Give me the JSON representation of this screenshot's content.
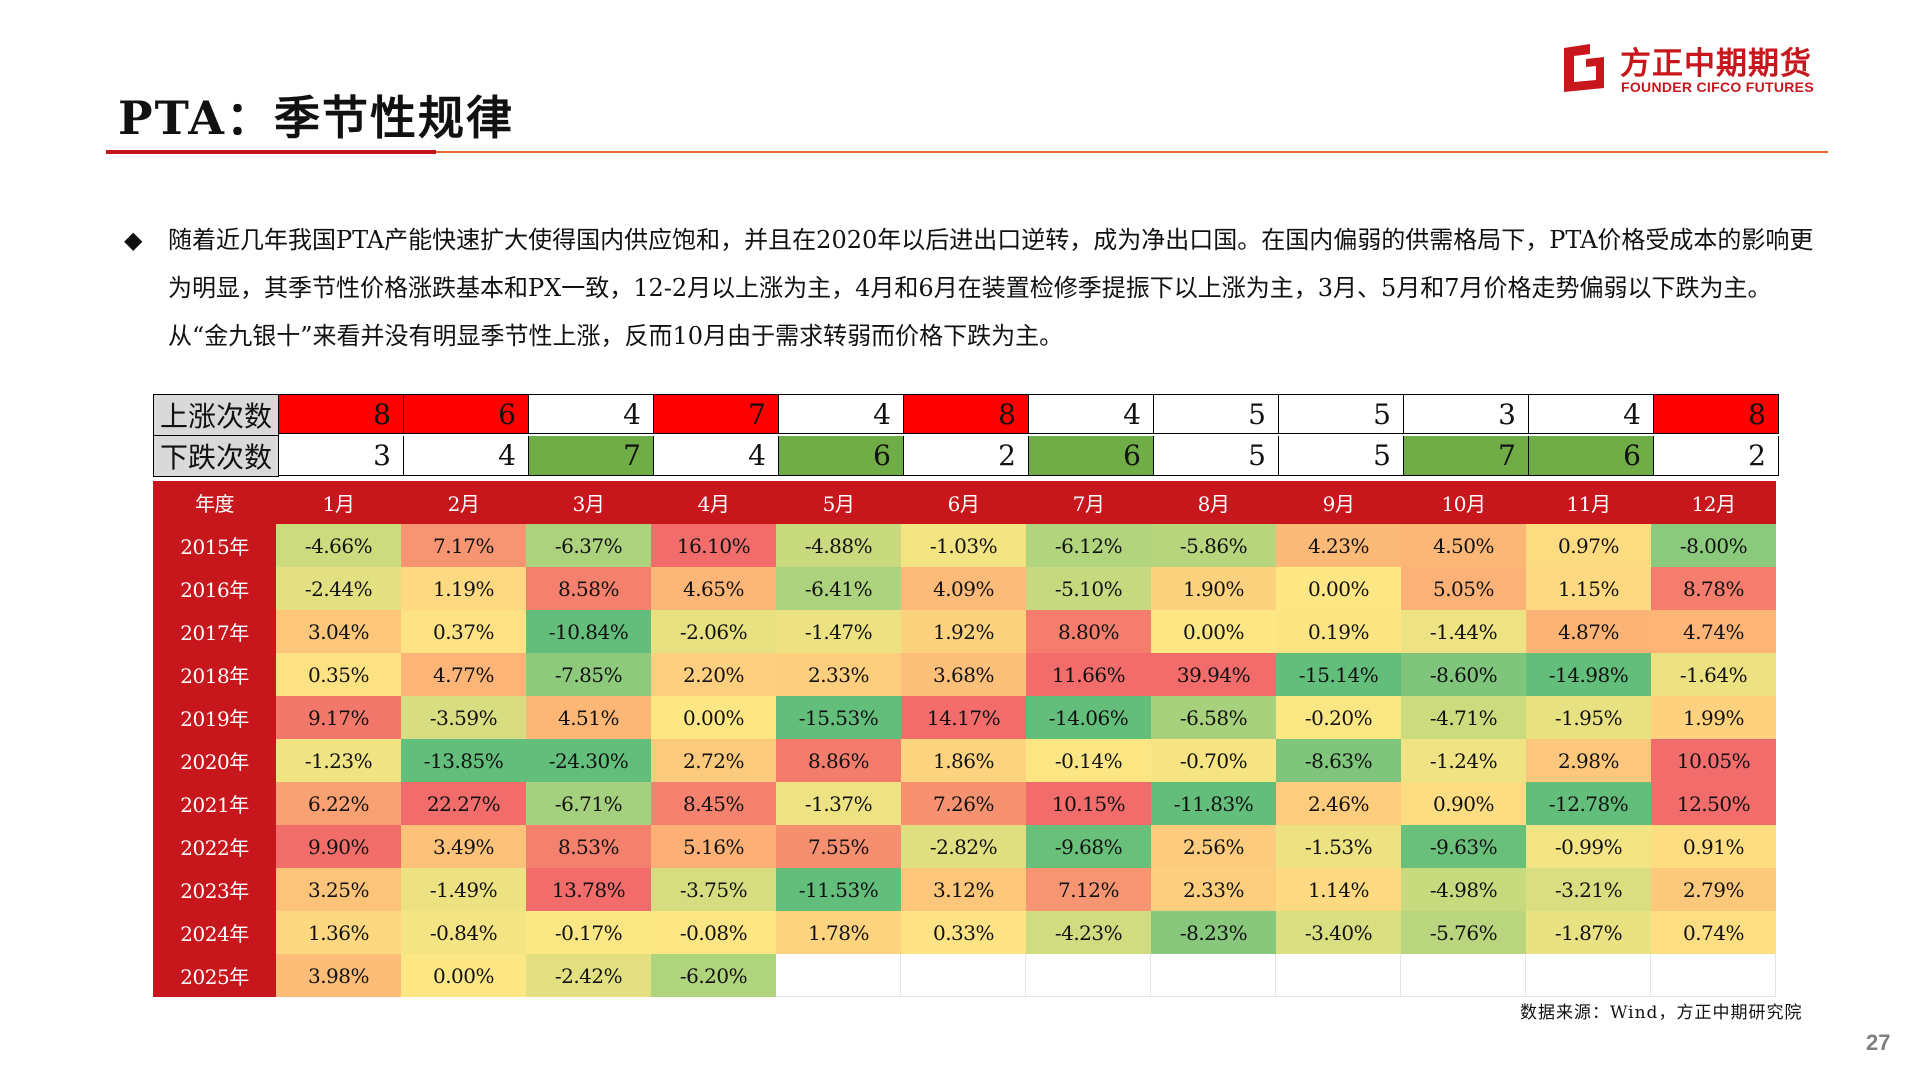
{
  "header": {
    "title": "PTA：季节性规律"
  },
  "logo": {
    "cn": "方正中期期货",
    "en": "FOUNDER CIFCO FUTURES"
  },
  "bullet_symbol": "◆",
  "paragraph": "随着近几年我国PTA产能快速扩大使得国内供应饱和，并且在2020年以后进出口逆转，成为净出口国。在国内偏弱的供需格局下，PTA价格受成本的影响更为明显，其季节性价格涨跌基本和PX一致，12-2月以上涨为主，4月和6月在装置检修季提振下以上涨为主，3月、5月和7月价格走势偏弱以下跌为主。从“金九银十”来看并没有明显季节性上涨，反而10月由于需求转弱而价格下跌为主。",
  "counts": {
    "up_label": "上涨次数",
    "down_label": "下跌次数",
    "up": [
      "8",
      "6",
      "4",
      "7",
      "4",
      "8",
      "4",
      "5",
      "5",
      "3",
      "4",
      "8"
    ],
    "down": [
      "3",
      "4",
      "7",
      "4",
      "6",
      "2",
      "6",
      "5",
      "5",
      "7",
      "6",
      "2"
    ]
  },
  "colors": {
    "red": "#ff0000",
    "green": "#70ad47",
    "header_red": "#c8161d"
  },
  "table": {
    "year_header": "年度",
    "months": [
      "1月",
      "2月",
      "3月",
      "4月",
      "5月",
      "6月",
      "7月",
      "8月",
      "9月",
      "10月",
      "11月",
      "12月"
    ],
    "rows": [
      {
        "year": "2015年",
        "values": [
          "-4.66%",
          "7.17%",
          "-6.37%",
          "16.10%",
          "-4.88%",
          "-1.03%",
          "-6.12%",
          "-5.86%",
          "4.23%",
          "4.50%",
          "0.97%",
          "-8.00%"
        ]
      },
      {
        "year": "2016年",
        "values": [
          "-2.44%",
          "1.19%",
          "8.58%",
          "4.65%",
          "-6.41%",
          "4.09%",
          "-5.10%",
          "1.90%",
          "0.00%",
          "5.05%",
          "1.15%",
          "8.78%"
        ]
      },
      {
        "year": "2017年",
        "values": [
          "3.04%",
          "0.37%",
          "-10.84%",
          "-2.06%",
          "-1.47%",
          "1.92%",
          "8.80%",
          "0.00%",
          "0.19%",
          "-1.44%",
          "4.87%",
          "4.74%"
        ]
      },
      {
        "year": "2018年",
        "values": [
          "0.35%",
          "4.77%",
          "-7.85%",
          "2.20%",
          "2.33%",
          "3.68%",
          "11.66%",
          "39.94%",
          "-15.14%",
          "-8.60%",
          "-14.98%",
          "-1.64%"
        ]
      },
      {
        "year": "2019年",
        "values": [
          "9.17%",
          "-3.59%",
          "4.51%",
          "0.00%",
          "-15.53%",
          "14.17%",
          "-14.06%",
          "-6.58%",
          "-0.20%",
          "-4.71%",
          "-1.95%",
          "1.99%"
        ]
      },
      {
        "year": "2020年",
        "values": [
          "-1.23%",
          "-13.85%",
          "-24.30%",
          "2.72%",
          "8.86%",
          "1.86%",
          "-0.14%",
          "-0.70%",
          "-8.63%",
          "-1.24%",
          "2.98%",
          "10.05%"
        ]
      },
      {
        "year": "2021年",
        "values": [
          "6.22%",
          "22.27%",
          "-6.71%",
          "8.45%",
          "-1.37%",
          "7.26%",
          "10.15%",
          "-11.83%",
          "2.46%",
          "0.90%",
          "-12.78%",
          "12.50%"
        ]
      },
      {
        "year": "2022年",
        "values": [
          "9.90%",
          "3.49%",
          "8.53%",
          "5.16%",
          "7.55%",
          "-2.82%",
          "-9.68%",
          "2.56%",
          "-1.53%",
          "-9.63%",
          "-0.99%",
          "0.91%"
        ]
      },
      {
        "year": "2023年",
        "values": [
          "3.25%",
          "-1.49%",
          "13.78%",
          "-3.75%",
          "-11.53%",
          "3.12%",
          "7.12%",
          "2.33%",
          "1.14%",
          "-4.98%",
          "-3.21%",
          "2.79%"
        ]
      },
      {
        "year": "2024年",
        "values": [
          "1.36%",
          "-0.84%",
          "-0.17%",
          "-0.08%",
          "1.78%",
          "0.33%",
          "-4.23%",
          "-8.23%",
          "-3.40%",
          "-5.76%",
          "-1.87%",
          "0.74%"
        ]
      },
      {
        "year": "2025年",
        "values": [
          "3.98%",
          "0.00%",
          "-2.42%",
          "-6.20%",
          "",
          "",
          "",
          "",
          "",
          "",
          "",
          ""
        ]
      }
    ]
  },
  "source": "数据来源：Wind，方正中期研究院",
  "page_number": "27"
}
